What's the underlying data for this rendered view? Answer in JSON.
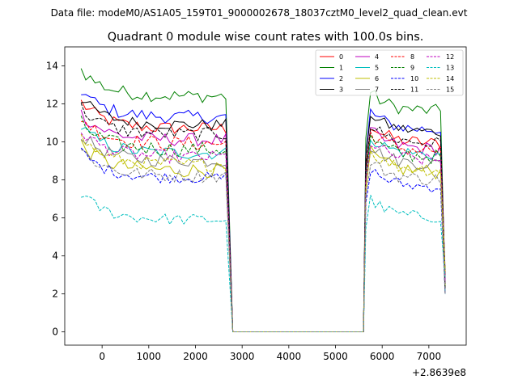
{
  "chart_data": {
    "type": "line",
    "suptitle": "Data file: modeM0/AS1A05_159T01_9000002678_18037cztM0_level2_quad_clean.evt",
    "title": "Quadrant 0 module wise count rates with 100.0s bins.",
    "xlabel": "",
    "ylabel": "",
    "x_offset_label": "+2.8639e8",
    "xlim": [
      -800,
      7800
    ],
    "ylim": [
      -0.7,
      15
    ],
    "xticks": [
      0,
      1000,
      2000,
      3000,
      4000,
      5000,
      6000,
      7000
    ],
    "yticks": [
      0,
      2,
      4,
      6,
      8,
      10,
      12,
      14
    ],
    "legend_position": "top-right",
    "gaps": [
      {
        "from": 2800,
        "to": 5600,
        "value": 0
      }
    ],
    "seg1_x": [
      -450,
      -350,
      -250,
      -150,
      -50,
      50,
      150,
      250,
      350,
      450,
      550,
      650,
      750,
      850,
      950,
      1050,
      1150,
      1250,
      1350,
      1450,
      1550,
      1650,
      1750,
      1850,
      1950,
      2050,
      2150,
      2250,
      2350,
      2450,
      2550,
      2650
    ],
    "seg2_x": [
      5650,
      5750,
      5850,
      5950,
      6050,
      6150,
      6250,
      6350,
      6450,
      6550,
      6650,
      6750,
      6850,
      6950,
      7050,
      7150,
      7250,
      7350
    ],
    "series": [
      {
        "name": "0",
        "color": "#ff0000",
        "dash": "solid",
        "level1": 11.2,
        "level2": 10.3,
        "noise": 0.35
      },
      {
        "name": "1",
        "color": "#008000",
        "dash": "solid",
        "level1": 12.9,
        "level2": 12.0,
        "noise": 0.35
      },
      {
        "name": "2",
        "color": "#0000ff",
        "dash": "solid",
        "level1": 11.8,
        "level2": 11.0,
        "noise": 0.35
      },
      {
        "name": "3",
        "color": "#000000",
        "dash": "solid",
        "level1": 11.4,
        "level2": 10.9,
        "noise": 0.3
      },
      {
        "name": "4",
        "color": "#bf00bf",
        "dash": "solid",
        "level1": 10.6,
        "level2": 10.0,
        "noise": 0.35
      },
      {
        "name": "5",
        "color": "#00bfbf",
        "dash": "solid",
        "level1": 9.9,
        "level2": 9.7,
        "noise": 0.35
      },
      {
        "name": "6",
        "color": "#bfbf00",
        "dash": "solid",
        "level1": 9.0,
        "level2": 8.8,
        "noise": 0.4
      },
      {
        "name": "7",
        "color": "#808080",
        "dash": "solid",
        "level1": 9.5,
        "level2": 9.2,
        "noise": 0.35
      },
      {
        "name": "8",
        "color": "#ff0000",
        "dash": "dashed",
        "level1": 10.4,
        "level2": 9.9,
        "noise": 0.4
      },
      {
        "name": "9",
        "color": "#008000",
        "dash": "dashed",
        "level1": 10.1,
        "level2": 9.6,
        "noise": 0.4
      },
      {
        "name": "10",
        "color": "#0000ff",
        "dash": "dashed",
        "level1": 8.6,
        "level2": 8.0,
        "noise": 0.3
      },
      {
        "name": "11",
        "color": "#000000",
        "dash": "dashed",
        "level1": 10.9,
        "level2": 10.3,
        "noise": 0.35
      },
      {
        "name": "12",
        "color": "#bf00bf",
        "dash": "dashed",
        "level1": 9.7,
        "level2": 9.4,
        "noise": 0.35
      },
      {
        "name": "13",
        "color": "#00bfbf",
        "dash": "dashed",
        "level1": 6.4,
        "level2": 6.4,
        "noise": 0.3
      },
      {
        "name": "14",
        "color": "#bfbf00",
        "dash": "dashed",
        "level1": 9.3,
        "level2": 8.9,
        "noise": 0.35
      },
      {
        "name": "15",
        "color": "#808080",
        "dash": "dashed",
        "level1": 8.7,
        "level2": 8.4,
        "noise": 0.35
      }
    ]
  }
}
